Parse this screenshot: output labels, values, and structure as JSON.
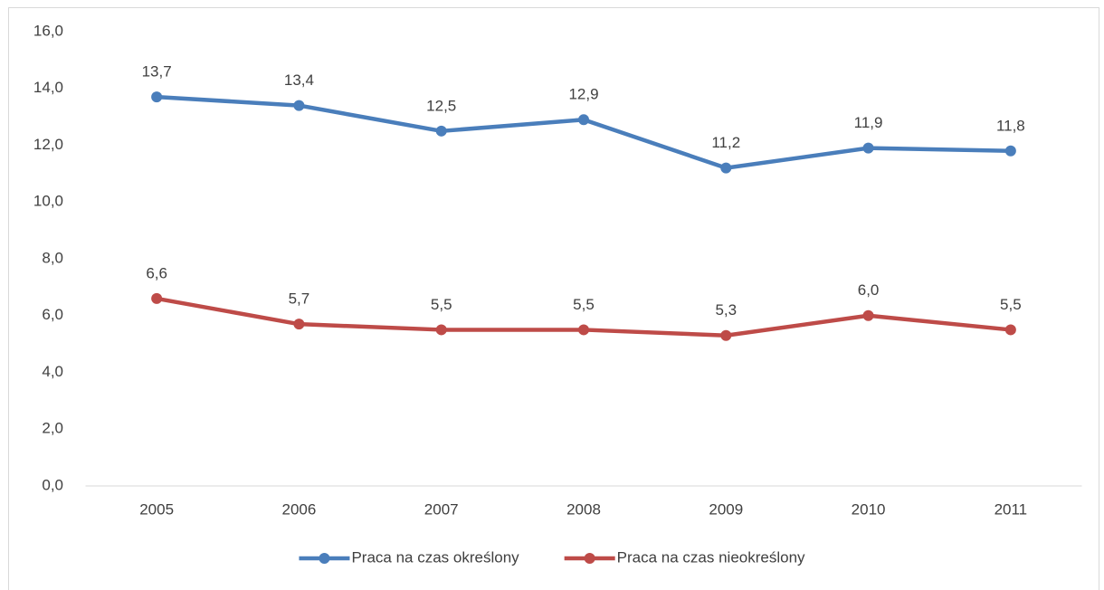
{
  "chart_data": {
    "type": "line",
    "categories": [
      "2005",
      "2006",
      "2007",
      "2008",
      "2009",
      "2010",
      "2011"
    ],
    "series": [
      {
        "name": "Praca na czas określony",
        "color": "#4a7ebb",
        "values": [
          13.7,
          13.4,
          12.5,
          12.9,
          11.2,
          11.9,
          11.8
        ],
        "value_labels": [
          "13,7",
          "13,4",
          "12,5",
          "12,9",
          "11,2",
          "11,9",
          "11,8"
        ]
      },
      {
        "name": "Praca na czas nieokreślony",
        "color": "#be4b48",
        "values": [
          6.6,
          5.7,
          5.5,
          5.5,
          5.3,
          6.0,
          5.5
        ],
        "value_labels": [
          "6,6",
          "5,7",
          "5,5",
          "5,5",
          "5,3",
          "6,0",
          "5,5"
        ]
      }
    ],
    "ylim": [
      0,
      16
    ],
    "yticks": [
      {
        "value": 0,
        "label": "0,0"
      },
      {
        "value": 2,
        "label": "2,0"
      },
      {
        "value": 4,
        "label": "4,0"
      },
      {
        "value": 6,
        "label": "6,0"
      },
      {
        "value": 8,
        "label": "8,0"
      },
      {
        "value": 10,
        "label": "10,0"
      },
      {
        "value": 12,
        "label": "12,0"
      },
      {
        "value": 14,
        "label": "14,0"
      },
      {
        "value": 16,
        "label": "16,0"
      }
    ],
    "grid": false,
    "legend": "bottom"
  }
}
